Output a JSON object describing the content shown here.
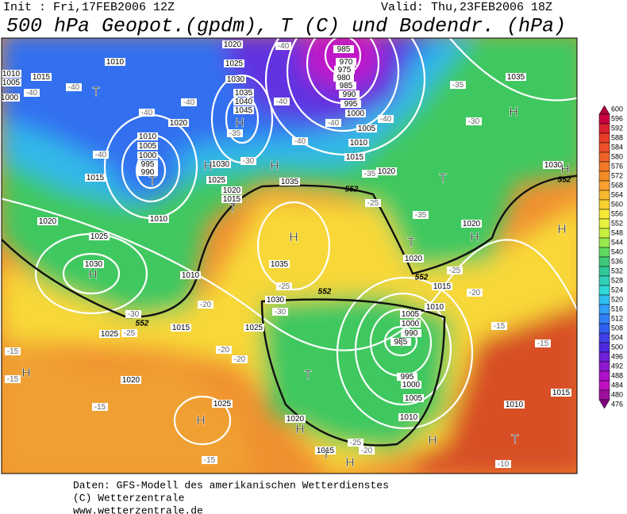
{
  "header": {
    "init": "Init : Fri,17FEB2006 12Z",
    "valid": "Valid: Thu,23FEB2006 18Z",
    "title": "500 hPa Geopot.(gpdm), T (C) und Bodendr. (hPa)"
  },
  "map": {
    "isobar_labels": [
      1010,
      1015,
      1010,
      1005,
      1000,
      1020,
      1010,
      1005,
      1000,
      995,
      990,
      1015,
      1010,
      1020,
      1025,
      1030,
      1010,
      1015,
      1025,
      1020,
      1025,
      1020,
      1015,
      1020,
      1025,
      1030,
      1035,
      1040,
      1045,
      1030,
      1025,
      1020,
      1015,
      1035,
      1035,
      1030,
      1025,
      985,
      970,
      975,
      980,
      985,
      990,
      995,
      1000,
      1005,
      1010,
      1015,
      1020,
      1035,
      1030,
      1020,
      1020,
      1015,
      1010,
      1005,
      1000,
      990,
      985,
      995,
      1000,
      1005,
      1010,
      1010,
      1015
    ],
    "temperature_labels": [
      -40,
      -40,
      -40,
      -40,
      -40,
      -40,
      -40,
      -40,
      -40,
      -40,
      -35,
      -35,
      -35,
      -35,
      -30,
      -30,
      -30,
      -30,
      -25,
      -25,
      -25,
      -25,
      -20,
      -20,
      -20,
      -20,
      -15,
      -15,
      -15,
      -15,
      -15,
      -15,
      -10,
      -20,
      -25
    ],
    "height_labels": [
      552,
      552,
      552,
      552,
      552
    ],
    "centers": [
      "T",
      "H",
      "H",
      "H",
      "T",
      "T",
      "H",
      "T",
      "H",
      "H",
      "H",
      "T",
      "H",
      "H",
      "H",
      "H",
      "T",
      "T",
      "H",
      "H",
      "T",
      "T",
      "H"
    ]
  },
  "colorbar": {
    "labels": [
      600,
      596,
      592,
      588,
      584,
      580,
      576,
      572,
      568,
      564,
      560,
      556,
      552,
      548,
      544,
      540,
      536,
      532,
      528,
      524,
      520,
      516,
      512,
      508,
      504,
      500,
      496,
      492,
      488,
      484,
      480,
      476
    ],
    "colors": [
      "#b0003c",
      "#c80040",
      "#dc2030",
      "#e83c28",
      "#ec5028",
      "#f06428",
      "#f07828",
      "#f48c28",
      "#f8a030",
      "#f8b830",
      "#f8d030",
      "#f8e838",
      "#e8f040",
      "#c8f040",
      "#98e850",
      "#60d860",
      "#40c878",
      "#30c898",
      "#30d0b8",
      "#30d8d8",
      "#30c0f0",
      "#30a0f8",
      "#3080f8",
      "#3060f0",
      "#4040e8",
      "#5028e0",
      "#7020d8",
      "#9018d0",
      "#b010c8",
      "#c010c0",
      "#a010a0",
      "#800080"
    ]
  },
  "footer": {
    "source": "Daten: GFS-Modell des amerikanischen Wetterdienstes",
    "copyright": "(C) Wetterzentrale",
    "url": "www.wetterzentrale.de"
  }
}
